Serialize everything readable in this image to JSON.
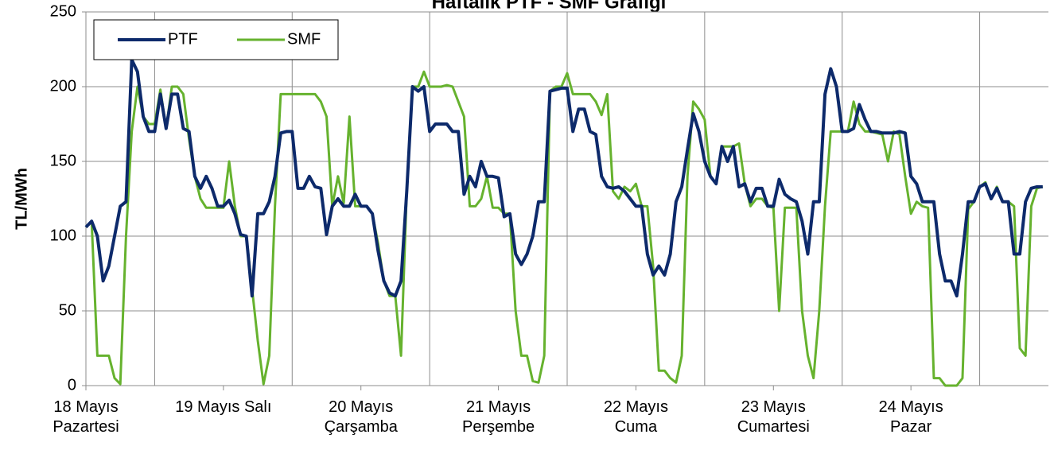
{
  "chart_data": {
    "type": "line",
    "title": "Haftalık PTF - SMF Grafiği",
    "y_label": "TL/MWh",
    "categories": [
      "18 Mayıs\nPazartesi",
      null,
      null,
      null,
      null,
      null,
      null,
      null,
      null,
      null,
      null,
      null,
      null,
      null,
      null,
      null,
      null,
      null,
      null,
      null,
      null,
      null,
      null,
      null,
      "19 Mayıs Salı",
      null,
      null,
      null,
      null,
      null,
      null,
      null,
      null,
      null,
      null,
      null,
      null,
      null,
      null,
      null,
      null,
      null,
      null,
      null,
      null,
      null,
      null,
      null,
      "20 Mayıs\nÇarşamba",
      null,
      null,
      null,
      null,
      null,
      null,
      null,
      null,
      null,
      null,
      null,
      null,
      null,
      null,
      null,
      null,
      null,
      null,
      null,
      null,
      null,
      null,
      null,
      "21 Mayıs\nPerşembe",
      null,
      null,
      null,
      null,
      null,
      null,
      null,
      null,
      null,
      null,
      null,
      null,
      null,
      null,
      null,
      null,
      null,
      null,
      null,
      null,
      null,
      null,
      null,
      "22 Mayıs\nCuma",
      null,
      null,
      null,
      null,
      null,
      null,
      null,
      null,
      null,
      null,
      null,
      null,
      null,
      null,
      null,
      null,
      null,
      null,
      null,
      null,
      null,
      null,
      null,
      "23 Mayıs\nCumartesi",
      null,
      null,
      null,
      null,
      null,
      null,
      null,
      null,
      null,
      null,
      null,
      null,
      null,
      null,
      null,
      null,
      null,
      null,
      null,
      null,
      null,
      null,
      null,
      "24 Mayıs\nPazar",
      null,
      null,
      null,
      null,
      null,
      null,
      null,
      null,
      null,
      null,
      null,
      null,
      null,
      null,
      null,
      null,
      null,
      null,
      null,
      null,
      null,
      null,
      null
    ],
    "series": [
      {
        "name": "PTF",
        "color": "#0d2a6b",
        "values": [
          106,
          110,
          100,
          70,
          80,
          100,
          120,
          123,
          218,
          210,
          180,
          170,
          170,
          195,
          172,
          195,
          195,
          172,
          170,
          140,
          132,
          140,
          132,
          120,
          120,
          124,
          115,
          101,
          100,
          60,
          115,
          115,
          123,
          140,
          169,
          170,
          170,
          132,
          132,
          140,
          133,
          132,
          101,
          120,
          125,
          120,
          120,
          128,
          120,
          120,
          115,
          90,
          70,
          62,
          60,
          70,
          130,
          200,
          197,
          200,
          170,
          175,
          175,
          175,
          170,
          170,
          128,
          140,
          133,
          150,
          140,
          140,
          139,
          113,
          115,
          88,
          81,
          88,
          100,
          123,
          123,
          197,
          198,
          199,
          199,
          170,
          185,
          185,
          170,
          168,
          140,
          133,
          132,
          133,
          130,
          125,
          120,
          120,
          88,
          74,
          80,
          74,
          88,
          123,
          133,
          158,
          182,
          170,
          150,
          140,
          135,
          160,
          150,
          160,
          133,
          135,
          123,
          132,
          132,
          120,
          120,
          138,
          128,
          125,
          123,
          110,
          88,
          123,
          123,
          195,
          212,
          200,
          170,
          170,
          172,
          188,
          178,
          170,
          170,
          169,
          169,
          169,
          170,
          169,
          140,
          135,
          123,
          123,
          123,
          88,
          70,
          70,
          60,
          88,
          123,
          123,
          133,
          135,
          125,
          132,
          123,
          123,
          88,
          88,
          123,
          132,
          133,
          133
        ]
      },
      {
        "name": "SMF",
        "color": "#66b22e",
        "values": [
          106,
          110,
          20,
          20,
          20,
          5,
          1,
          100,
          170,
          200,
          180,
          175,
          175,
          198,
          172,
          200,
          200,
          195,
          165,
          140,
          125,
          119,
          119,
          119,
          119,
          150,
          120,
          100,
          100,
          65,
          30,
          1,
          20,
          120,
          195,
          195,
          195,
          195,
          195,
          195,
          195,
          190,
          180,
          120,
          140,
          122,
          180,
          120,
          120,
          120,
          115,
          95,
          70,
          60,
          60,
          20,
          130,
          200,
          200,
          210,
          200,
          200,
          200,
          201,
          200,
          190,
          180,
          120,
          120,
          125,
          140,
          119,
          119,
          115,
          115,
          50,
          20,
          20,
          3,
          2,
          20,
          197,
          200,
          200,
          209,
          195,
          195,
          195,
          195,
          190,
          181,
          195,
          130,
          125,
          133,
          130,
          135,
          120,
          120,
          80,
          10,
          10,
          5,
          2,
          20,
          140,
          190,
          185,
          178,
          140,
          135,
          160,
          160,
          160,
          162,
          135,
          120,
          125,
          125,
          120,
          119,
          50,
          119,
          119,
          119,
          50,
          20,
          5,
          50,
          120,
          170,
          170,
          170,
          170,
          190,
          175,
          170,
          170,
          169,
          168,
          150,
          170,
          168,
          140,
          115,
          123,
          120,
          119,
          5,
          5,
          0,
          0,
          0,
          5,
          118,
          123,
          133,
          136,
          125,
          133,
          123,
          123,
          120,
          25,
          20,
          120,
          132,
          133
        ]
      }
    ],
    "ylim": [
      0,
      250
    ],
    "yticks": [
      0,
      50,
      100,
      150,
      200,
      250
    ],
    "grid": true,
    "legend": "upper left"
  }
}
